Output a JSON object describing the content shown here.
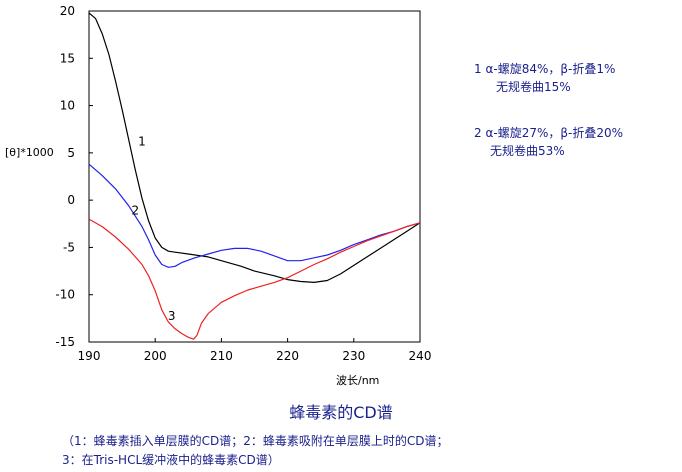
{
  "chart_data": {
    "type": "line",
    "title": "蜂毒素的CD谱",
    "xlabel": "波长/nm",
    "ylabel": "[θ]*1000",
    "xlim": [
      190,
      240
    ],
    "ylim": [
      -15,
      20
    ],
    "xticks": [
      "190",
      "200",
      "210",
      "220",
      "230",
      "240"
    ],
    "yticks": [
      "20",
      "15",
      "10",
      "5",
      "0",
      "-5",
      "-10",
      "-15"
    ],
    "grid": false,
    "series": [
      {
        "name": "1",
        "color": "#000000",
        "points": [
          [
            190,
            19.8
          ],
          [
            191,
            19.2
          ],
          [
            192,
            17.6
          ],
          [
            193,
            15.4
          ],
          [
            194,
            12.6
          ],
          [
            195,
            9.6
          ],
          [
            196,
            6.4
          ],
          [
            197,
            3.2
          ],
          [
            198,
            0.2
          ],
          [
            199,
            -2.2
          ],
          [
            200,
            -4.0
          ],
          [
            201,
            -5.0
          ],
          [
            202,
            -5.4
          ],
          [
            203,
            -5.5
          ],
          [
            205,
            -5.7
          ],
          [
            208,
            -6.0
          ],
          [
            210,
            -6.4
          ],
          [
            213,
            -7.0
          ],
          [
            215,
            -7.5
          ],
          [
            218,
            -8.0
          ],
          [
            220,
            -8.4
          ],
          [
            222,
            -8.6
          ],
          [
            224,
            -8.7
          ],
          [
            226,
            -8.5
          ],
          [
            228,
            -7.8
          ],
          [
            230,
            -6.9
          ],
          [
            232,
            -6.0
          ],
          [
            234,
            -5.1
          ],
          [
            236,
            -4.2
          ],
          [
            238,
            -3.3
          ],
          [
            240,
            -2.4
          ]
        ]
      },
      {
        "name": "2",
        "color": "#2222ee",
        "points": [
          [
            190,
            3.8
          ],
          [
            192,
            2.6
          ],
          [
            194,
            1.2
          ],
          [
            196,
            -0.6
          ],
          [
            198,
            -2.8
          ],
          [
            199,
            -4.2
          ],
          [
            200,
            -5.8
          ],
          [
            201,
            -6.8
          ],
          [
            202,
            -7.1
          ],
          [
            203,
            -7.0
          ],
          [
            204,
            -6.6
          ],
          [
            206,
            -6.1
          ],
          [
            208,
            -5.7
          ],
          [
            210,
            -5.3
          ],
          [
            212,
            -5.1
          ],
          [
            214,
            -5.1
          ],
          [
            216,
            -5.4
          ],
          [
            218,
            -5.9
          ],
          [
            220,
            -6.4
          ],
          [
            222,
            -6.4
          ],
          [
            224,
            -6.1
          ],
          [
            226,
            -5.8
          ],
          [
            228,
            -5.3
          ],
          [
            230,
            -4.7
          ],
          [
            232,
            -4.2
          ],
          [
            234,
            -3.7
          ],
          [
            236,
            -3.3
          ],
          [
            238,
            -2.8
          ],
          [
            240,
            -2.4
          ]
        ]
      },
      {
        "name": "3",
        "color": "#ee2222",
        "points": [
          [
            190,
            -2.0
          ],
          [
            192,
            -2.8
          ],
          [
            194,
            -3.9
          ],
          [
            196,
            -5.2
          ],
          [
            198,
            -6.8
          ],
          [
            199,
            -8.0
          ],
          [
            200,
            -9.6
          ],
          [
            201,
            -11.6
          ],
          [
            202,
            -12.9
          ],
          [
            203,
            -13.6
          ],
          [
            204,
            -14.1
          ],
          [
            205,
            -14.5
          ],
          [
            205.8,
            -14.7
          ],
          [
            206.3,
            -14.3
          ],
          [
            207,
            -13.0
          ],
          [
            208,
            -12.0
          ],
          [
            210,
            -10.8
          ],
          [
            212,
            -10.1
          ],
          [
            214,
            -9.5
          ],
          [
            216,
            -9.1
          ],
          [
            218,
            -8.7
          ],
          [
            220,
            -8.2
          ],
          [
            222,
            -7.5
          ],
          [
            224,
            -6.8
          ],
          [
            226,
            -6.2
          ],
          [
            228,
            -5.5
          ],
          [
            230,
            -4.9
          ],
          [
            232,
            -4.3
          ],
          [
            234,
            -3.8
          ],
          [
            236,
            -3.3
          ],
          [
            238,
            -2.8
          ],
          [
            240,
            -2.4
          ]
        ]
      }
    ],
    "curve_labels": [
      {
        "text": "1",
        "x": 198,
        "y": 5.8
      },
      {
        "text": "2",
        "x": 197,
        "y": -1.5
      },
      {
        "text": "3",
        "x": 202.5,
        "y": -12.7
      }
    ]
  },
  "legend": {
    "entry1_line1": "1 α-螺旋84%，β-折叠1%",
    "entry1_line2": "无规卷曲15%",
    "entry2_line1": "2 α-螺旋27%，β-折叠20%",
    "entry2_line2": "无规卷曲53%"
  },
  "caption": {
    "line1": "（1：蜂毒素插入单层膜的CD谱；2：蜂毒素吸附在单层膜上时的CD谱；",
    "line2": "3：在Tris-HCL缓冲液中的蜂毒素CD谱）"
  },
  "colors": {
    "text_blue": "#1a1f8c"
  }
}
